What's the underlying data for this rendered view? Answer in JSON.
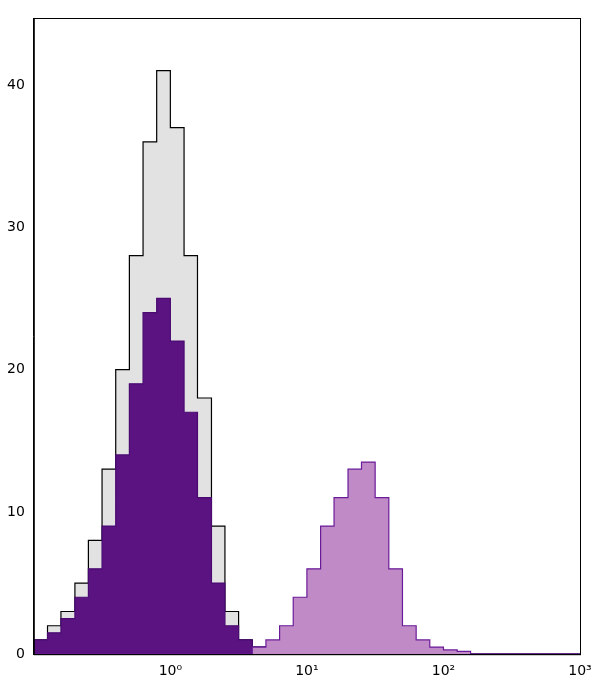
{
  "chart_data": {
    "type": "histogram",
    "log": "x",
    "grid": false,
    "bins": [
      0.1,
      0.126,
      0.158,
      0.2,
      0.251,
      0.316,
      0.398,
      0.501,
      0.631,
      0.794,
      1,
      1.26,
      1.58,
      2,
      2.51,
      3.16,
      3.98,
      5.01,
      6.31,
      7.94,
      10,
      12.6,
      15.8,
      20,
      25.1,
      31.6,
      39.8,
      50.1,
      63.1,
      79.4,
      100,
      126,
      158,
      200,
      251,
      316,
      398,
      501,
      631,
      794,
      1000
    ],
    "series": [
      {
        "color": "#e2e2e2",
        "values": [
          1,
          2,
          3,
          5,
          8,
          13,
          20,
          28,
          36,
          41,
          37,
          28,
          18,
          9,
          3,
          1,
          0.5,
          0,
          0,
          0,
          0,
          0,
          0,
          0,
          0,
          0,
          0,
          0,
          0,
          0,
          0,
          0,
          0,
          0,
          0,
          0,
          0,
          0,
          0,
          0
        ]
      },
      {
        "color": "#5a1380",
        "values": [
          1,
          1.5,
          2.5,
          4,
          6,
          9,
          14,
          19,
          24,
          25,
          22,
          17,
          11,
          5,
          2,
          1,
          0.5,
          0.5,
          0.5,
          0.5,
          0.3,
          0,
          0,
          0,
          0,
          0,
          0,
          0,
          0,
          0,
          0,
          0,
          0,
          0,
          0,
          0,
          0,
          0,
          0,
          0
        ]
      },
      {
        "color": "#c08ac6",
        "values": [
          0,
          0,
          0,
          0,
          0,
          0,
          0,
          0,
          0,
          0,
          0,
          0,
          0,
          0,
          0,
          0,
          0.5,
          1,
          2,
          4,
          6,
          9,
          11,
          13,
          13.5,
          11,
          6,
          2,
          1,
          0.5,
          0.3,
          0.2,
          0,
          0,
          0,
          0,
          0,
          0,
          0,
          0
        ]
      }
    ],
    "xlim": [
      0.1,
      1000
    ],
    "ylim": [
      0,
      44.7
    ],
    "xticks": [
      {
        "value": 1,
        "label": "10⁰"
      },
      {
        "value": 10,
        "label": "10¹"
      },
      {
        "value": 100,
        "label": "10²"
      },
      {
        "value": 1000,
        "label": "10³"
      }
    ],
    "yticks": [
      0,
      10,
      20,
      30,
      40
    ]
  }
}
